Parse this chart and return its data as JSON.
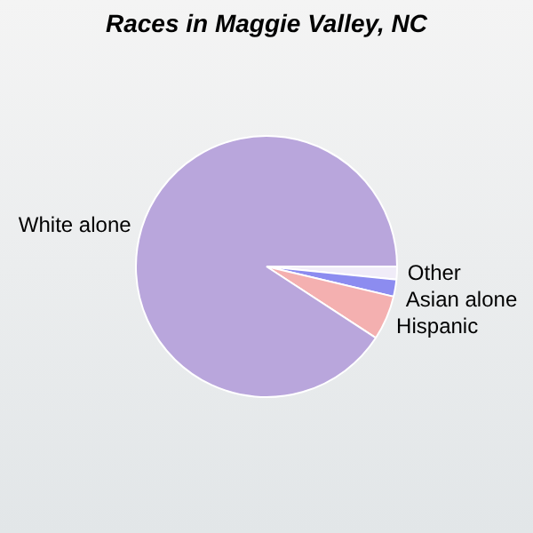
{
  "chart_data": {
    "type": "pie",
    "title": "Races in Maggie Valley, NC",
    "categories": [
      "Other",
      "Asian alone",
      "Hispanic",
      "White alone"
    ],
    "values": [
      1.6,
      2.1,
      5.5,
      90.8
    ],
    "colors": [
      "#f0ecf8",
      "#8c8cf0",
      "#f4b0b0",
      "#b9a6dc"
    ],
    "legend": false
  }
}
